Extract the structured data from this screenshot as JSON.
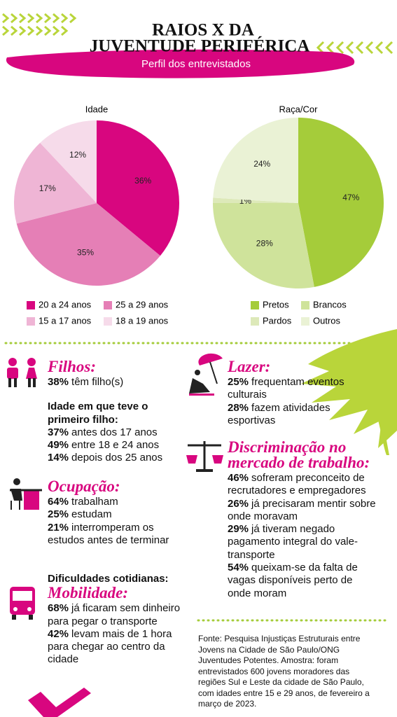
{
  "header": {
    "title_lines": [
      "RAIOS X DA",
      "JUVENTUDE PERIFÉRICA"
    ],
    "subtitle": "Perfil dos entrevistados"
  },
  "chart_data": [
    {
      "type": "pie",
      "title": "Idade",
      "categories": [
        "20 a 24 anos",
        "25 a 29 anos",
        "15 a 17 anos",
        "18 a 19 anos"
      ],
      "values": [
        36,
        35,
        17,
        12
      ],
      "value_labels": [
        "36%",
        "35%",
        "17%",
        "12%"
      ],
      "colors": [
        "#d8067f",
        "#e57fb6",
        "#efb5d5",
        "#f6dbea"
      ]
    },
    {
      "type": "pie",
      "title": "Raça/Cor",
      "categories": [
        "Pretos",
        "Brancos",
        "Pardos",
        "Outros"
      ],
      "values": [
        47,
        28,
        1,
        24
      ],
      "value_labels": [
        "47%",
        "28%",
        "1%",
        "24%"
      ],
      "colors": [
        "#a5cc3a",
        "#cfe39b",
        "#dde9b9",
        "#eaf2d5"
      ]
    }
  ],
  "sections": [
    {
      "title": "Filhos:",
      "items": [
        {
          "strong": "38%",
          "text": "têm filho(s)"
        },
        {
          "strong": "Idade em que teve o primeiro filho:"
        },
        {
          "strong": "37%",
          "text": "antes dos 17 anos"
        },
        {
          "strong": "49%",
          "text": "entre 18 e 24 anos"
        },
        {
          "strong": "14%",
          "text": "depois dos 25 anos"
        }
      ]
    },
    {
      "title": "Ocupação:",
      "items": [
        {
          "strong": "64%",
          "text": "trabalham"
        },
        {
          "strong": "25%",
          "text": "estudam"
        },
        {
          "strong": "21%",
          "text": "interromperam os estudos antes de terminar"
        }
      ]
    },
    {
      "intro": "Dificuldades cotidianas:",
      "title": "Mobilidade:",
      "items": [
        {
          "strong": "68%",
          "text": "já ficaram sem dinheiro para pegar o transporte"
        },
        {
          "strong": "42%",
          "text": "levam mais de 1 hora para chegar ao centro da cidade"
        }
      ]
    },
    {
      "title": "Lazer:",
      "items": [
        {
          "strong": "25%",
          "text": "frequentam eventos culturais"
        },
        {
          "strong": "28%",
          "text": "fazem atividades esportivas"
        }
      ]
    },
    {
      "title": "Discriminação no mercado de trabalho:",
      "items": [
        {
          "strong": "46%",
          "text": "sofreram preconceito de recrutadores e empregadores"
        },
        {
          "strong": "26%",
          "text": "já precisaram mentir sobre onde moravam"
        },
        {
          "strong": "29%",
          "text": "já tiveram negado pagamento integral do vale-transporte"
        },
        {
          "strong": "54%",
          "text": "queixam-se da falta de vagas disponíveis perto de onde moram"
        }
      ]
    }
  ],
  "source": "Fonte: Pesquisa Injustiças Estruturais entre Jovens na Cidade de São Paulo/ONG Juventudes Potentes. Amostra: foram entrevistados 600 jovens moradores das regiões Sul e Leste da cidade de São Paulo, com idades entre 15 e 29 anos, de fevereiro a março de 2023."
}
